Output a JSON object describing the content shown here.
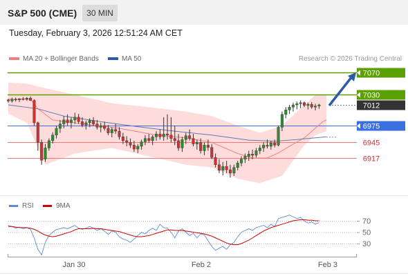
{
  "header": {
    "title": "S&P 500 (CME)",
    "timeframe": "30 MIN"
  },
  "datetime": "Tuesday, February 3, 2026 12:51:24 AM CET",
  "legend": {
    "ma20": "MA 20 + Bollinger Bands",
    "ma50": "MA 50"
  },
  "credit": "Research © 2026 Trading Central",
  "colors": {
    "bullish": "#2e8b2e",
    "bearish": "#cc3333",
    "resistance": "#5aa000",
    "pivot": "#3a6fe0",
    "support": "#ee7777",
    "ma20": "#f08080",
    "ma50": "#6677aa",
    "bollinger": "#ffd6d6",
    "rsi": "#5b8bd8",
    "rsi_ma": "#cc0000",
    "last_price": "#333333"
  },
  "icons": [
    "forecast-arrow-icon"
  ],
  "chart_data": [
    {
      "type": "candlestick",
      "price_range": [
        6885,
        7085
      ],
      "last_price": "7012",
      "levels": [
        {
          "value": 7070,
          "label": "7070",
          "kind": "resistance"
        },
        {
          "value": 7030,
          "label": "7030",
          "kind": "resistance"
        },
        {
          "value": 6975,
          "label": "6975",
          "kind": "pivot"
        },
        {
          "value": 6945,
          "label": "6945",
          "kind": "support"
        },
        {
          "value": 6917,
          "label": "6917",
          "kind": "support"
        }
      ],
      "x_ticks": [
        "Jan 30",
        "Feb 2",
        "Feb 3"
      ],
      "forecast": {
        "from": 7012,
        "to": 7070
      },
      "candles": [
        [
          7021,
          7023,
          7016,
          7019
        ],
        [
          7019,
          7025,
          7016,
          7022
        ],
        [
          7022,
          7025,
          7018,
          7021
        ],
        [
          7021,
          7024,
          7017,
          7023
        ],
        [
          7023,
          7026,
          7020,
          7022
        ],
        [
          7022,
          7026,
          7019,
          7024
        ],
        [
          7024,
          7027,
          7019,
          7020
        ],
        [
          7020,
          7022,
          6975,
          6980
        ],
        [
          6980,
          6982,
          6930,
          6945
        ],
        [
          6945,
          6950,
          6905,
          6913
        ],
        [
          6915,
          6942,
          6910,
          6935
        ],
        [
          6935,
          6952,
          6930,
          6948
        ],
        [
          6948,
          6963,
          6943,
          6958
        ],
        [
          6958,
          6975,
          6952,
          6970
        ],
        [
          6970,
          6985,
          6962,
          6978
        ],
        [
          6978,
          6992,
          6970,
          6985
        ],
        [
          6985,
          6995,
          6975,
          6980
        ],
        [
          6980,
          6990,
          6970,
          6985
        ],
        [
          6985,
          6998,
          6978,
          6990
        ],
        [
          6990,
          6996,
          6978,
          6982
        ],
        [
          6982,
          6990,
          6972,
          6976
        ],
        [
          6976,
          6984,
          6968,
          6980
        ],
        [
          6980,
          6988,
          6972,
          6984
        ],
        [
          6984,
          6990,
          6975,
          6978
        ],
        [
          6978,
          6985,
          6968,
          6972
        ],
        [
          6972,
          6980,
          6963,
          6975
        ],
        [
          6975,
          6982,
          6966,
          6970
        ],
        [
          6970,
          6976,
          6958,
          6962
        ],
        [
          6962,
          6972,
          6954,
          6968
        ],
        [
          6968,
          6978,
          6960,
          6965
        ],
        [
          6965,
          6972,
          6950,
          6955
        ],
        [
          6955,
          6962,
          6942,
          6948
        ],
        [
          6948,
          6956,
          6938,
          6945
        ],
        [
          6945,
          6952,
          6935,
          6940
        ],
        [
          6940,
          6948,
          6928,
          6933
        ],
        [
          6933,
          6942,
          6926,
          6938
        ],
        [
          6938,
          6950,
          6932,
          6946
        ],
        [
          6946,
          6958,
          6940,
          6952
        ],
        [
          6952,
          6960,
          6944,
          6948
        ],
        [
          6948,
          6958,
          6940,
          6955
        ],
        [
          6955,
          6965,
          6948,
          6960
        ],
        [
          6960,
          6968,
          6950,
          6955
        ],
        [
          6955,
          6990,
          6948,
          6960
        ],
        [
          6960,
          6995,
          6950,
          6958
        ],
        [
          6958,
          6990,
          6945,
          6952
        ],
        [
          6952,
          6975,
          6940,
          6948
        ],
        [
          6948,
          6960,
          6930,
          6935
        ],
        [
          6935,
          6955,
          6928,
          6950
        ],
        [
          6950,
          6962,
          6942,
          6957
        ],
        [
          6957,
          6968,
          6948,
          6952
        ],
        [
          6952,
          6960,
          6938,
          6942
        ],
        [
          6942,
          6950,
          6932,
          6945
        ],
        [
          6945,
          6952,
          6925,
          6930
        ],
        [
          6930,
          6945,
          6922,
          6940
        ],
        [
          6940,
          6950,
          6930,
          6936
        ],
        [
          6936,
          6942,
          6915,
          6918
        ],
        [
          6918,
          6925,
          6900,
          6905
        ],
        [
          6905,
          6915,
          6890,
          6895
        ],
        [
          6895,
          6910,
          6886,
          6902
        ],
        [
          6902,
          6912,
          6890,
          6896
        ],
        [
          6896,
          6905,
          6882,
          6890
        ],
        [
          6890,
          6905,
          6885,
          6900
        ],
        [
          6900,
          6912,
          6895,
          6908
        ],
        [
          6908,
          6920,
          6902,
          6915
        ],
        [
          6915,
          6925,
          6908,
          6920
        ],
        [
          6920,
          6930,
          6912,
          6924
        ],
        [
          6924,
          6932,
          6915,
          6922
        ],
        [
          6922,
          6935,
          6918,
          6930
        ],
        [
          6930,
          6940,
          6924,
          6935
        ],
        [
          6935,
          6945,
          6928,
          6940
        ],
        [
          6940,
          6950,
          6934,
          6938
        ],
        [
          6938,
          6948,
          6932,
          6944
        ],
        [
          6944,
          6950,
          6936,
          6940
        ],
        [
          6940,
          6975,
          6938,
          6972
        ],
        [
          6972,
          7000,
          6965,
          6995
        ],
        [
          6995,
          7008,
          6988,
          7003
        ],
        [
          7003,
          7012,
          6996,
          7008
        ],
        [
          7008,
          7016,
          7000,
          7012
        ],
        [
          7012,
          7018,
          7004,
          7014
        ],
        [
          7014,
          7020,
          7006,
          7016
        ],
        [
          7016,
          7018,
          7008,
          7011
        ],
        [
          7011,
          7016,
          7004,
          7013
        ],
        [
          7013,
          7017,
          7005,
          7008
        ],
        [
          7008,
          7014,
          7002,
          7010
        ],
        [
          7010,
          7014,
          7005,
          7012
        ]
      ],
      "ma20": [
        [
          0,
          7022
        ],
        [
          6,
          7022
        ],
        [
          8,
          7005
        ],
        [
          12,
          6985
        ],
        [
          20,
          6978
        ],
        [
          30,
          6970
        ],
        [
          40,
          6958
        ],
        [
          48,
          6953
        ],
        [
          55,
          6945
        ],
        [
          62,
          6925
        ],
        [
          66,
          6917
        ],
        [
          70,
          6917
        ],
        [
          73,
          6926
        ],
        [
          76,
          6938
        ],
        [
          80,
          6953
        ],
        [
          85,
          6982
        ],
        [
          86,
          6985
        ]
      ],
      "ma50": [
        [
          0,
          7012
        ],
        [
          8,
          7005
        ],
        [
          15,
          6992
        ],
        [
          25,
          6982
        ],
        [
          35,
          6973
        ],
        [
          45,
          6965
        ],
        [
          55,
          6958
        ],
        [
          65,
          6949
        ],
        [
          72,
          6947
        ],
        [
          78,
          6950
        ],
        [
          86,
          6955
        ]
      ],
      "bollinger": {
        "upper": [
          [
            0,
            7052
          ],
          [
            5,
            7050
          ],
          [
            10,
            7042
          ],
          [
            18,
            7030
          ],
          [
            28,
            7015
          ],
          [
            38,
            7008
          ],
          [
            48,
            7000
          ],
          [
            55,
            6992
          ],
          [
            62,
            6975
          ],
          [
            68,
            6962
          ],
          [
            74,
            6975
          ],
          [
            80,
            7012
          ],
          [
            83,
            7030
          ],
          [
            86,
            7030
          ]
        ],
        "lower": [
          [
            0,
            6996
          ],
          [
            5,
            6980
          ],
          [
            10,
            6905
          ],
          [
            18,
            6925
          ],
          [
            28,
            6935
          ],
          [
            38,
            6920
          ],
          [
            48,
            6905
          ],
          [
            55,
            6900
          ],
          [
            62,
            6880
          ],
          [
            68,
            6872
          ],
          [
            74,
            6885
          ],
          [
            80,
            6940
          ],
          [
            83,
            6958
          ],
          [
            86,
            6965
          ]
        ]
      }
    },
    {
      "type": "line",
      "title": "RSI",
      "series": [
        {
          "name": "RSI"
        },
        {
          "name": "9MA"
        }
      ],
      "y_ticks": [
        "70",
        "50",
        "30"
      ],
      "ylim": [
        0,
        100
      ],
      "rsi": [
        62,
        60,
        57,
        59,
        56,
        58,
        55,
        40,
        20,
        10,
        32,
        44,
        50,
        55,
        56,
        58,
        56,
        59,
        62,
        57,
        55,
        57,
        60,
        57,
        53,
        56,
        52,
        46,
        52,
        50,
        42,
        38,
        36,
        32,
        38,
        44,
        50,
        47,
        53,
        57,
        53,
        64,
        58,
        57,
        50,
        40,
        52,
        56,
        50,
        44,
        48,
        40,
        47,
        45,
        35,
        25,
        18,
        22,
        25,
        20,
        28,
        32,
        42,
        50,
        53,
        56,
        53,
        58,
        60,
        62,
        58,
        64,
        60,
        74,
        76,
        78,
        80,
        77,
        74,
        76,
        70,
        66,
        68,
        64,
        67
      ],
      "rsi_ma": [
        60,
        60,
        59,
        58,
        58,
        58,
        57,
        55,
        52,
        48,
        45,
        43,
        42,
        43,
        45,
        47,
        49,
        51,
        54,
        56,
        56,
        56,
        56,
        57,
        56,
        56,
        55,
        54,
        53,
        52,
        51,
        49,
        47,
        45,
        43,
        42,
        42,
        43,
        44,
        46,
        48,
        50,
        52,
        54,
        54,
        53,
        53,
        53,
        52,
        51,
        50,
        49,
        48,
        47,
        45,
        43,
        40,
        37,
        34,
        31,
        29,
        28,
        28,
        30,
        33,
        36,
        40,
        44,
        48,
        52,
        55,
        58,
        60,
        62,
        64,
        66,
        68,
        70,
        71,
        72,
        72,
        71,
        71,
        70,
        70
      ]
    }
  ]
}
